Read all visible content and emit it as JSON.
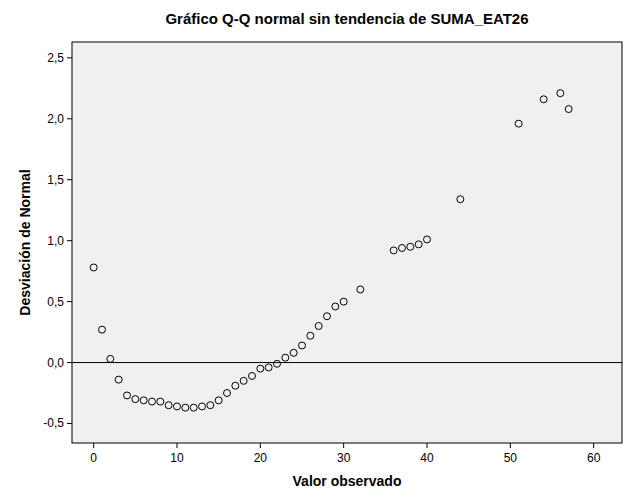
{
  "chart_data": {
    "type": "scatter",
    "title": "Gráfico Q-Q normal sin tendencia de SUMA_EAT26",
    "x_label": "Valor observado",
    "y_label": "Desviación de Normal",
    "x": [
      0,
      1,
      2,
      3,
      4,
      5,
      6,
      7,
      8,
      9,
      10,
      11,
      12,
      13,
      14,
      15,
      16,
      17,
      18,
      19,
      20,
      21,
      22,
      23,
      24,
      25,
      26,
      27,
      28,
      29,
      30,
      32,
      36,
      37,
      38,
      39,
      40,
      44,
      51,
      54,
      56,
      57
    ],
    "values": [
      0.78,
      0.27,
      0.03,
      -0.14,
      -0.27,
      -0.3,
      -0.31,
      -0.32,
      -0.32,
      -0.35,
      -0.36,
      -0.37,
      -0.37,
      -0.36,
      -0.35,
      -0.31,
      -0.25,
      -0.19,
      -0.15,
      -0.11,
      -0.05,
      -0.04,
      -0.01,
      0.04,
      0.08,
      0.14,
      0.22,
      0.3,
      0.38,
      0.46,
      0.5,
      0.6,
      0.92,
      0.94,
      0.95,
      0.97,
      1.01,
      1.34,
      1.96,
      2.16,
      2.21,
      2.08
    ],
    "color": "#000000",
    "marker": "circle-open",
    "reference_line": 0,
    "xlim": [
      -2.6,
      63.4
    ],
    "xticks": [
      0,
      10,
      20,
      30,
      40,
      50,
      60
    ],
    "ylim": [
      -0.66,
      2.63
    ],
    "yticks": [
      {
        "value": -0.5,
        "label": "-0,5"
      },
      {
        "value": 0,
        "label": "0,0"
      },
      {
        "value": 0.5,
        "label": "0,5"
      },
      {
        "value": 1,
        "label": "1,0"
      },
      {
        "value": 1.5,
        "label": "1,5"
      },
      {
        "value": 2,
        "label": "2,0"
      },
      {
        "value": 2.5,
        "label": "2,5"
      }
    ],
    "grid": false
  }
}
